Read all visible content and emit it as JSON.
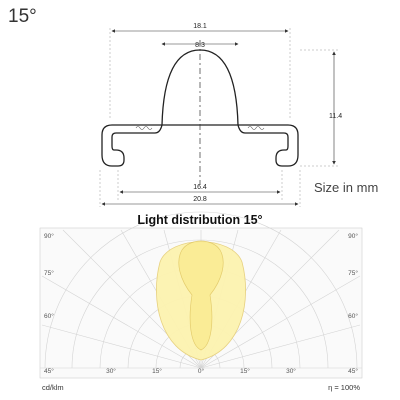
{
  "title": "15°",
  "size_note": "Size in mm",
  "profile": {
    "dimensions": {
      "overall_width": "18.1",
      "top_width": "8.3",
      "height": "11.4",
      "inner_base_width": "16.4",
      "outer_base_width": "20.8"
    }
  },
  "light_distribution": {
    "title": "Light distribution 15°",
    "angle_labels": {
      "left_90": "90°",
      "left_75": "75°",
      "left_60": "60°",
      "left_45": "45°",
      "right_90": "90°",
      "right_75": "75°",
      "right_60": "60°",
      "right_45": "45°",
      "bottom_30_left": "30°",
      "bottom_15_left": "15°",
      "bottom_0": "0°",
      "bottom_15_right": "15°",
      "bottom_30_right": "30°"
    },
    "unit_label": "cd/klm",
    "efficiency_label": "η = 100%",
    "beam_angle_deg": 15,
    "colors": {
      "beam_fill": "#fdf3b0",
      "beam_stroke": "#e6cf7a",
      "grid": "#d4d4d4"
    }
  }
}
